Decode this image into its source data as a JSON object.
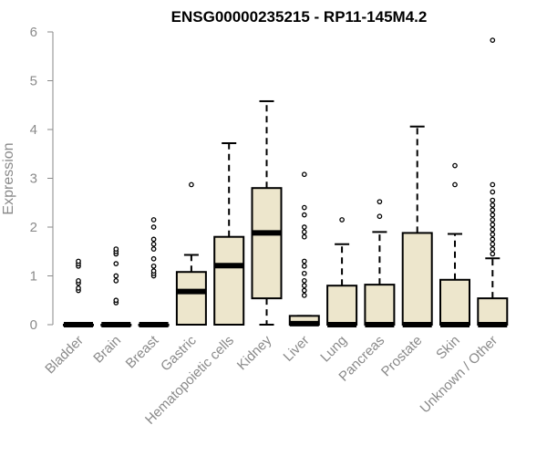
{
  "chart_data": {
    "type": "boxplot",
    "title": "ENSG00000235215 - RP11-145M4.2",
    "xlabel": "",
    "ylabel": "Expression",
    "ylim": [
      0,
      6
    ],
    "yticks": [
      0,
      1,
      2,
      3,
      4,
      5,
      6
    ],
    "grid": false,
    "legend": "none",
    "colors": {
      "box_fill": "#ede6cc",
      "box_stroke": "#000000",
      "axis": "#8a8a8a",
      "text": "#8a8a8a",
      "title": "#000000"
    },
    "categories": [
      "Bladder",
      "Brain",
      "Breast",
      "Gastric",
      "Hematopoietic cells",
      "Kidney",
      "Liver",
      "Lung",
      "Pancreas",
      "Prostate",
      "Skin",
      "Unknown / Other"
    ],
    "boxes": [
      {
        "q1": 0,
        "median": 0,
        "q3": 0,
        "whisker_low": 0,
        "whisker_high": 0,
        "outliers": [
          0.7,
          0.75,
          0.85,
          0.9,
          1.2,
          1.25,
          1.3
        ]
      },
      {
        "q1": 0,
        "median": 0,
        "q3": 0,
        "whisker_low": 0,
        "whisker_high": 0,
        "outliers": [
          0.45,
          0.5,
          0.9,
          1.0,
          1.25,
          1.45,
          1.5,
          1.55
        ]
      },
      {
        "q1": 0,
        "median": 0,
        "q3": 0,
        "whisker_low": 0,
        "whisker_high": 0,
        "outliers": [
          1.0,
          1.05,
          1.1,
          1.2,
          1.35,
          1.55,
          1.65,
          1.75,
          2.0,
          2.15
        ]
      },
      {
        "q1": 0,
        "median": 0.68,
        "q3": 1.08,
        "whisker_low": 0,
        "whisker_high": 1.43,
        "outliers": [
          2.87
        ]
      },
      {
        "q1": 0,
        "median": 1.21,
        "q3": 1.8,
        "whisker_low": 0,
        "whisker_high": 3.72,
        "outliers": []
      },
      {
        "q1": 0.54,
        "median": 1.88,
        "q3": 2.8,
        "whisker_low": 0,
        "whisker_high": 4.58,
        "outliers": []
      },
      {
        "q1": 0,
        "median": 0.02,
        "q3": 0.18,
        "whisker_low": 0,
        "whisker_high": 0.18,
        "outliers": [
          0.6,
          0.7,
          0.8,
          0.9,
          1.05,
          1.2,
          1.3,
          1.8,
          1.9,
          2.0,
          2.25,
          2.4,
          3.08
        ]
      },
      {
        "q1": 0,
        "median": 0,
        "q3": 0.8,
        "whisker_low": 0,
        "whisker_high": 1.65,
        "outliers": [
          2.15
        ]
      },
      {
        "q1": 0,
        "median": 0,
        "q3": 0.82,
        "whisker_low": 0,
        "whisker_high": 1.9,
        "outliers": [
          2.22,
          2.52
        ]
      },
      {
        "q1": 0,
        "median": 0,
        "q3": 1.88,
        "whisker_low": 0,
        "whisker_high": 4.06,
        "outliers": []
      },
      {
        "q1": 0,
        "median": 0,
        "q3": 0.92,
        "whisker_low": 0,
        "whisker_high": 1.86,
        "outliers": [
          2.87,
          3.26
        ]
      },
      {
        "q1": 0,
        "median": 0,
        "q3": 0.54,
        "whisker_low": 0,
        "whisker_high": 1.36,
        "outliers": [
          1.45,
          1.55,
          1.65,
          1.75,
          1.85,
          1.95,
          2.05,
          2.15,
          2.25,
          2.35,
          2.45,
          2.55,
          2.72,
          2.87,
          5.83
        ]
      }
    ]
  }
}
